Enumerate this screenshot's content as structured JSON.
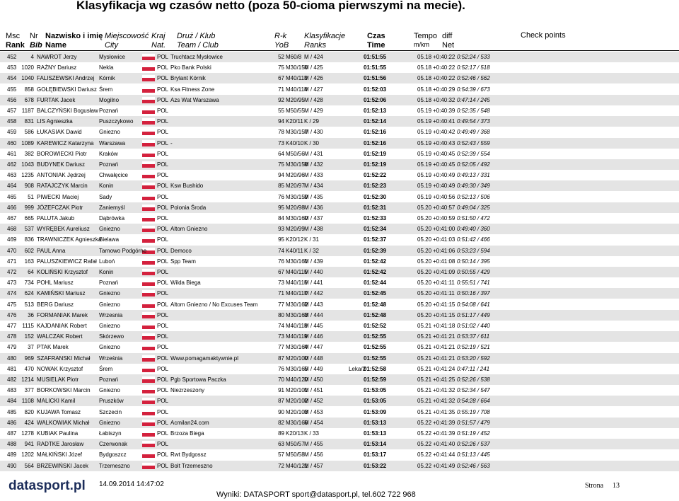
{
  "header": {
    "title": "Klasyfikacja wg czasów netto (poza 50-cioma pierwszymi na mecie).",
    "columns": [
      [
        "Msc",
        "Rank"
      ],
      [
        "Nr",
        "Bib"
      ],
      [
        "Nazwisko i imię",
        "Name"
      ],
      [
        "Miejscowość",
        "City"
      ],
      [
        "Kraj",
        "Nat."
      ],
      [
        "Druż / Klub",
        "Team / Club"
      ],
      [
        "R-k",
        "YoB"
      ],
      [
        "Klasyfikacje",
        "Ranks"
      ],
      [
        "Czas",
        "Time"
      ],
      [
        "Tempo",
        "m/km"
      ],
      [
        "diff",
        "Net"
      ],
      [
        "Check points"
      ]
    ]
  },
  "table": {
    "rows": [
      [
        "452",
        "4",
        "NAWROT Jerzy",
        "Mysłowice",
        "POL",
        "Truchtacz Mysłowice",
        "52",
        "M60/8",
        "M / 424",
        "01:51:55",
        "05.18",
        "+0:40:22",
        "0:52:24 / 533"
      ],
      [
        "453",
        "1020",
        "RAŻNY Dariusz",
        "Nekla",
        "POL",
        "Pko Bank Polski",
        "75",
        "M30/156",
        "M / 425",
        "01:51:55",
        "05.18",
        "+0:40:22",
        "0:52:17 / 518"
      ],
      [
        "454",
        "1040",
        "FALISZEWSKI Andrzej",
        "Kórnik",
        "POL",
        "Brylant Kórnik",
        "67",
        "M40/113",
        "M / 426",
        "01:51:56",
        "05.18",
        "+0:40:22",
        "0:52:46 / 562"
      ],
      [
        "455",
        "858",
        "GOŁĘBIEWSKI Dariusz",
        "Śrem",
        "POL",
        "Ksa Fitness Zone",
        "71",
        "M40/114",
        "M / 427",
        "01:52:03",
        "05.18",
        "+0:40:29",
        "0:54:39 / 673"
      ],
      [
        "456",
        "678",
        "FURTAK Jacek",
        "Mogilno",
        "POL",
        "Azs Wat Warszawa",
        "92",
        "M20/95",
        "M / 428",
        "01:52:06",
        "05.18",
        "+0:40:32",
        "0:47:14 / 245"
      ],
      [
        "457",
        "1187",
        "BALCZYŃSKI Bogusław",
        "Poznań",
        "POL",
        null,
        "55",
        "M50/55",
        "M / 429",
        "01:52:13",
        "05.19",
        "+0:40:39",
        "0:52:35 / 548"
      ],
      [
        "458",
        "831",
        "LIS Agnieszka",
        "Puszczykowo",
        "POL",
        null,
        "94",
        "K20/11",
        "K / 29",
        "01:52:14",
        "05.19",
        "+0:40:41",
        "0:49:54 / 373"
      ],
      [
        "459",
        "586",
        "ŁUKASIAK Dawid",
        "Gniezno",
        "POL",
        null,
        "78",
        "M30/157",
        "M / 430",
        "01:52:16",
        "05.19",
        "+0:40:42",
        "0:49:49 / 368"
      ],
      [
        "460",
        "1089",
        "KAREWICZ Katarzyna",
        "Warszawa",
        "POL",
        "-",
        "73",
        "K40/10",
        "K / 30",
        "01:52:16",
        "05.19",
        "+0:40:43",
        "0:52:43 / 559"
      ],
      [
        "461",
        "382",
        "BOROWIECKI Piotr",
        "Kraków",
        "POL",
        null,
        "64",
        "M50/56",
        "M / 431",
        "01:52:19",
        "05.19",
        "+0:40:45",
        "0:52:39 / 554"
      ],
      [
        "462",
        "1043",
        "BUDYNEK Dariusz",
        "Poznań",
        "POL",
        null,
        "75",
        "M30/158",
        "M / 432",
        "01:52:19",
        "05.19",
        "+0:40:45",
        "0:52:05 / 492"
      ],
      [
        "463",
        "1235",
        "ANTONIAK Jędrzej",
        "Chwałęcice",
        "POL",
        null,
        "94",
        "M20/96",
        "M / 433",
        "01:52:22",
        "05.19",
        "+0:40:49",
        "0:49:13 / 331"
      ],
      [
        "464",
        "908",
        "RATAJCZYK Marcin",
        "Konin",
        "POL",
        "Ksw Bushido",
        "85",
        "M20/97",
        "M / 434",
        "01:52:23",
        "05.19",
        "+0:40:49",
        "0:49:30 / 349"
      ],
      [
        "465",
        "51",
        "PIWECKI Maciej",
        "Sady",
        "POL",
        null,
        "76",
        "M30/159",
        "M / 435",
        "01:52:30",
        "05.19",
        "+0:40:56",
        "0:52:13 / 506"
      ],
      [
        "466",
        "999",
        "JÓZEFCZAK Piotr",
        "Zaniemyśl",
        "POL",
        "Polonia Środa",
        "95",
        "M20/98",
        "M / 436",
        "01:52:31",
        "05.20",
        "+0:40:57",
        "0:49:04 / 325"
      ],
      [
        "467",
        "665",
        "PALUTA Jakub",
        "Dąbrówka",
        "POL",
        null,
        "84",
        "M30/160",
        "M / 437",
        "01:52:33",
        "05.20",
        "+0:40:59",
        "0:51:50 / 472"
      ],
      [
        "468",
        "537",
        "WYRĘBEK Aureliusz",
        "Gniezno",
        "POL",
        "Altom Gniezno",
        "93",
        "M20/99",
        "M / 438",
        "01:52:34",
        "05.20",
        "+0:41:00",
        "0:49:40 / 360"
      ],
      [
        "469",
        "836",
        "TRAWNICZEK Agnieszka",
        "Bielawa",
        "POL",
        null,
        "95",
        "K20/12",
        "K / 31",
        "01:52:37",
        "05.20",
        "+0:41:03",
        "0:51:42 / 466"
      ],
      [
        "470",
        "602",
        "PAUL Anna",
        "Tarnowo Podgórne",
        "POL",
        "Democo",
        "74",
        "K40/11",
        "K / 32",
        "01:52:39",
        "05.20",
        "+0:41:06",
        "0:53:23 / 594"
      ],
      [
        "471",
        "163",
        "PALUSZKIEWICZ Rafał",
        "Luboń",
        "POL",
        "Spp Team",
        "76",
        "M30/161",
        "M / 439",
        "01:52:42",
        "05.20",
        "+0:41:08",
        "0:50:14 / 395"
      ],
      [
        "472",
        "64",
        "KOLIŃSKI Krzysztof",
        "Konin",
        "POL",
        null,
        "67",
        "M40/115",
        "M / 440",
        "01:52:42",
        "05.20",
        "+0:41:09",
        "0:50:55 / 429"
      ],
      [
        "473",
        "734",
        "POHL Mariusz",
        "Poznań",
        "POL",
        "Wilda Biega",
        "73",
        "M40/116",
        "M / 441",
        "01:52:44",
        "05.20",
        "+0:41:11",
        "0:55:51 / 741"
      ],
      [
        "474",
        "624",
        "KAMIŃSKI Mariusz",
        "Gniezno",
        "POL",
        null,
        "71",
        "M40/117",
        "M / 442",
        "01:52:45",
        "05.20",
        "+0:41:11",
        "0:50:16 / 397"
      ],
      [
        "475",
        "513",
        "BERG Dariusz",
        "Gniezno",
        "POL",
        "Altom Gniezno / No Excuses Team",
        "77",
        "M30/162",
        "M / 443",
        "01:52:48",
        "05.20",
        "+0:41:15",
        "0:54:08 / 641"
      ],
      [
        "476",
        "36",
        "FORMANIAK Marek",
        "Wrzesnia",
        "POL",
        null,
        "80",
        "M30/163",
        "M / 444",
        "01:52:48",
        "05.20",
        "+0:41:15",
        "0:51:17 / 449"
      ],
      [
        "477",
        "1115",
        "KAJDANIAK Robert",
        "Gniezno",
        "POL",
        null,
        "74",
        "M40/118",
        "M / 445",
        "01:52:52",
        "05.21",
        "+0:41:18",
        "0:51:02 / 440"
      ],
      [
        "478",
        "152",
        "WALCZAK Robert",
        "Skórzewo",
        "POL",
        null,
        "73",
        "M40/119",
        "M / 446",
        "01:52:55",
        "05.21",
        "+0:41:21",
        "0:53:37 / 611"
      ],
      [
        "479",
        "37",
        "PTAK Marek",
        "Gniezno",
        "POL",
        null,
        "77",
        "M30/164",
        "M / 447",
        "01:52:55",
        "05.21",
        "+0:41:21",
        "0:52:19 / 521"
      ],
      [
        "480",
        "969",
        "SZAFRANSKI Michał",
        "Września",
        "POL",
        "Www.pomagamaktywnie.pl",
        "87",
        "M20/100",
        "M / 448",
        "01:52:55",
        "05.21",
        "+0:41:21",
        "0:53:20 / 592"
      ],
      [
        "481",
        "470",
        "NOWAK Krzysztof",
        "Śrem",
        "POL",
        null,
        "76",
        "M30/165",
        "M / 449",
        "01:52:58",
        "05.21",
        "+0:41:24",
        "0:47:11 / 241",
        "Leka/2"
      ],
      [
        "482",
        "1214",
        "MUSIELAK Piotr",
        "Poznań",
        "POL",
        "Pgb Sportowa Paczka",
        "70",
        "M40/120",
        "M / 450",
        "01:52:59",
        "05.21",
        "+0:41:25",
        "0:52:26 / 538"
      ],
      [
        "483",
        "377",
        "BORKOWSKI Marcin",
        "Gniezno",
        "POL",
        "Niezrzeszony",
        "91",
        "M20/101",
        "M / 451",
        "01:53:05",
        "05.21",
        "+0:41:32",
        "0:52:34 / 547"
      ],
      [
        "484",
        "1108",
        "MALICKI Kamil",
        "Pruszków",
        "POL",
        null,
        "87",
        "M20/102",
        "M / 452",
        "01:53:05",
        "05.21",
        "+0:41:32",
        "0:54:28 / 664"
      ],
      [
        "485",
        "820",
        "KUJAWA Tomasz",
        "Szczecin",
        "POL",
        null,
        "90",
        "M20/103",
        "M / 453",
        "01:53:09",
        "05.21",
        "+0:41:35",
        "0:55:19 / 708"
      ],
      [
        "486",
        "424",
        "WALKOWIAK Michał",
        "Gniezno",
        "POL",
        "Acmilan24.com",
        "82",
        "M30/166",
        "M / 454",
        "01:53:13",
        "05.22",
        "+0:41:39",
        "0:51:57 / 479"
      ],
      [
        "487",
        "1278",
        "KUBIAK Paulina",
        "Łabiszyn",
        "POL",
        "Brzoza Biega",
        "89",
        "K20/13",
        "K / 33",
        "01:53:13",
        "05.22",
        "+0:41:39",
        "0:51:19 / 452"
      ],
      [
        "488",
        "941",
        "RADTKE Jarosław",
        "Czerwonak",
        "POL",
        null,
        "63",
        "M50/57",
        "M / 455",
        "01:53:14",
        "05.22",
        "+0:41:40",
        "0:52:26 / 537"
      ],
      [
        "489",
        "1202",
        "MAŁKIŃSKI Józef",
        "Bydgoszcz",
        "POL",
        "Rwt Bydgossz",
        "57",
        "M50/58",
        "M / 456",
        "01:53:17",
        "05.22",
        "+0:41:44",
        "0:51:13 / 445"
      ],
      [
        "490",
        "564",
        "BRZEWIŃSKI Jacek",
        "Trzemeszno",
        "POL",
        "Bolt Trzemeszno",
        "72",
        "M40/121",
        "M / 457",
        "01:53:22",
        "05.22",
        "+0:41:49",
        "0:52:46 / 563"
      ]
    ]
  },
  "footer": {
    "logo": "datasport.pl",
    "timestamp": "14.09.2014 14:47:02",
    "contact": "Wyniki: DATASPORT sport@datasport.pl, tel.602 722 968",
    "page_label": "Strona",
    "page_number": "13"
  }
}
